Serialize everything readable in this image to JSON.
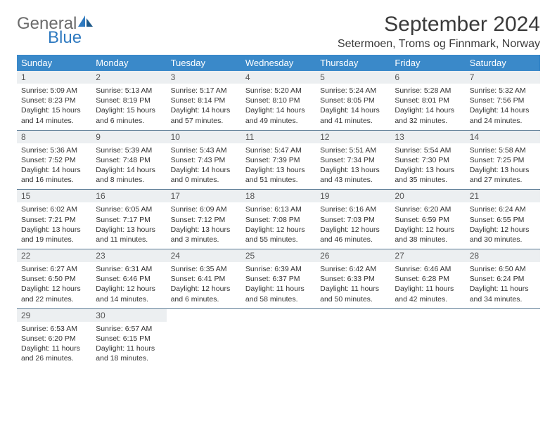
{
  "logo": {
    "text1": "General",
    "text2": "Blue"
  },
  "title": "September 2024",
  "location": "Setermoen, Troms og Finnmark, Norway",
  "colors": {
    "header_bg": "#3a89c9",
    "header_text": "#ffffff",
    "daynum_bg": "#eceff1",
    "row_border": "#5a7a94",
    "logo_gray": "#6b6b6b",
    "logo_blue": "#2f7ac0"
  },
  "weekdays": [
    "Sunday",
    "Monday",
    "Tuesday",
    "Wednesday",
    "Thursday",
    "Friday",
    "Saturday"
  ],
  "days": [
    {
      "n": "1",
      "sunrise": "5:09 AM",
      "sunset": "8:23 PM",
      "daylight": "15 hours and 14 minutes."
    },
    {
      "n": "2",
      "sunrise": "5:13 AM",
      "sunset": "8:19 PM",
      "daylight": "15 hours and 6 minutes."
    },
    {
      "n": "3",
      "sunrise": "5:17 AM",
      "sunset": "8:14 PM",
      "daylight": "14 hours and 57 minutes."
    },
    {
      "n": "4",
      "sunrise": "5:20 AM",
      "sunset": "8:10 PM",
      "daylight": "14 hours and 49 minutes."
    },
    {
      "n": "5",
      "sunrise": "5:24 AM",
      "sunset": "8:05 PM",
      "daylight": "14 hours and 41 minutes."
    },
    {
      "n": "6",
      "sunrise": "5:28 AM",
      "sunset": "8:01 PM",
      "daylight": "14 hours and 32 minutes."
    },
    {
      "n": "7",
      "sunrise": "5:32 AM",
      "sunset": "7:56 PM",
      "daylight": "14 hours and 24 minutes."
    },
    {
      "n": "8",
      "sunrise": "5:36 AM",
      "sunset": "7:52 PM",
      "daylight": "14 hours and 16 minutes."
    },
    {
      "n": "9",
      "sunrise": "5:39 AM",
      "sunset": "7:48 PM",
      "daylight": "14 hours and 8 minutes."
    },
    {
      "n": "10",
      "sunrise": "5:43 AM",
      "sunset": "7:43 PM",
      "daylight": "14 hours and 0 minutes."
    },
    {
      "n": "11",
      "sunrise": "5:47 AM",
      "sunset": "7:39 PM",
      "daylight": "13 hours and 51 minutes."
    },
    {
      "n": "12",
      "sunrise": "5:51 AM",
      "sunset": "7:34 PM",
      "daylight": "13 hours and 43 minutes."
    },
    {
      "n": "13",
      "sunrise": "5:54 AM",
      "sunset": "7:30 PM",
      "daylight": "13 hours and 35 minutes."
    },
    {
      "n": "14",
      "sunrise": "5:58 AM",
      "sunset": "7:25 PM",
      "daylight": "13 hours and 27 minutes."
    },
    {
      "n": "15",
      "sunrise": "6:02 AM",
      "sunset": "7:21 PM",
      "daylight": "13 hours and 19 minutes."
    },
    {
      "n": "16",
      "sunrise": "6:05 AM",
      "sunset": "7:17 PM",
      "daylight": "13 hours and 11 minutes."
    },
    {
      "n": "17",
      "sunrise": "6:09 AM",
      "sunset": "7:12 PM",
      "daylight": "13 hours and 3 minutes."
    },
    {
      "n": "18",
      "sunrise": "6:13 AM",
      "sunset": "7:08 PM",
      "daylight": "12 hours and 55 minutes."
    },
    {
      "n": "19",
      "sunrise": "6:16 AM",
      "sunset": "7:03 PM",
      "daylight": "12 hours and 46 minutes."
    },
    {
      "n": "20",
      "sunrise": "6:20 AM",
      "sunset": "6:59 PM",
      "daylight": "12 hours and 38 minutes."
    },
    {
      "n": "21",
      "sunrise": "6:24 AM",
      "sunset": "6:55 PM",
      "daylight": "12 hours and 30 minutes."
    },
    {
      "n": "22",
      "sunrise": "6:27 AM",
      "sunset": "6:50 PM",
      "daylight": "12 hours and 22 minutes."
    },
    {
      "n": "23",
      "sunrise": "6:31 AM",
      "sunset": "6:46 PM",
      "daylight": "12 hours and 14 minutes."
    },
    {
      "n": "24",
      "sunrise": "6:35 AM",
      "sunset": "6:41 PM",
      "daylight": "12 hours and 6 minutes."
    },
    {
      "n": "25",
      "sunrise": "6:39 AM",
      "sunset": "6:37 PM",
      "daylight": "11 hours and 58 minutes."
    },
    {
      "n": "26",
      "sunrise": "6:42 AM",
      "sunset": "6:33 PM",
      "daylight": "11 hours and 50 minutes."
    },
    {
      "n": "27",
      "sunrise": "6:46 AM",
      "sunset": "6:28 PM",
      "daylight": "11 hours and 42 minutes."
    },
    {
      "n": "28",
      "sunrise": "6:50 AM",
      "sunset": "6:24 PM",
      "daylight": "11 hours and 34 minutes."
    },
    {
      "n": "29",
      "sunrise": "6:53 AM",
      "sunset": "6:20 PM",
      "daylight": "11 hours and 26 minutes."
    },
    {
      "n": "30",
      "sunrise": "6:57 AM",
      "sunset": "6:15 PM",
      "daylight": "11 hours and 18 minutes."
    }
  ],
  "labels": {
    "sunrise": "Sunrise: ",
    "sunset": "Sunset: ",
    "daylight": "Daylight: "
  },
  "first_day_column": 0,
  "total_cells": 35
}
